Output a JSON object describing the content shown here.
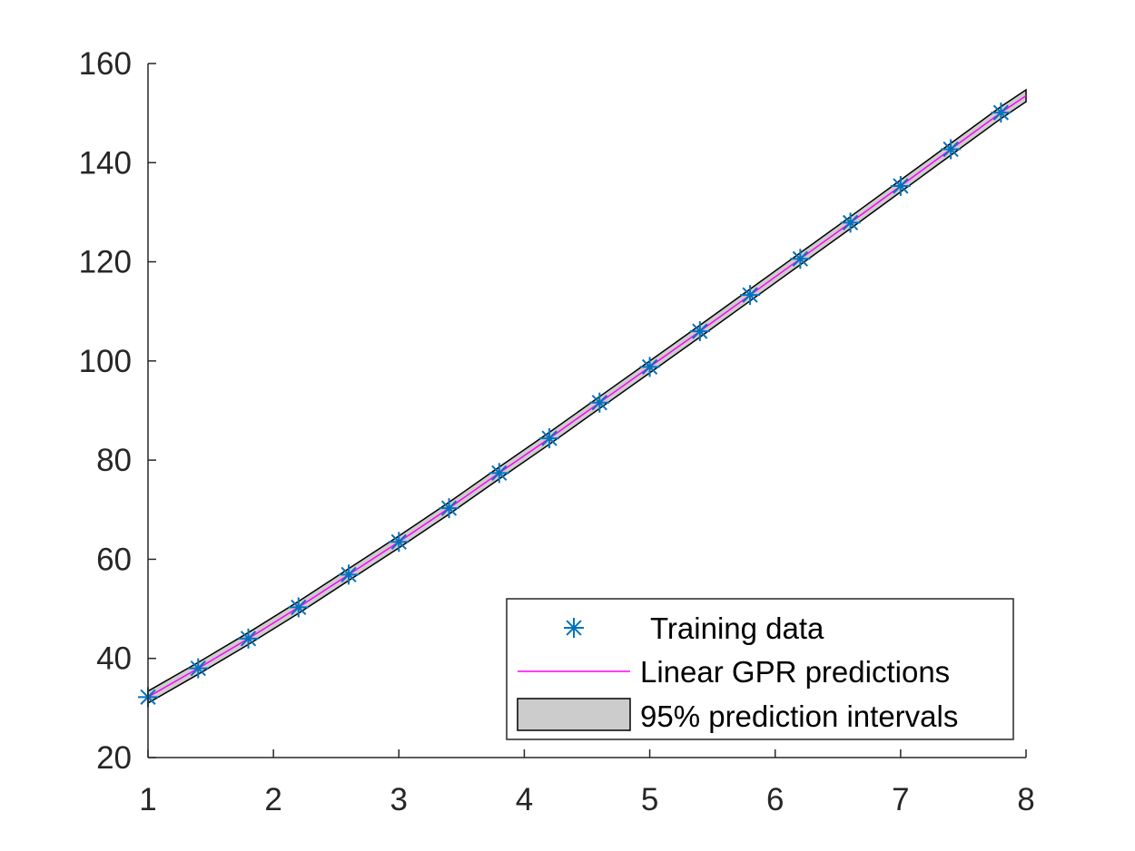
{
  "chart_data": {
    "type": "line",
    "title": "",
    "xlabel": "",
    "ylabel": "",
    "xlim": [
      1,
      8
    ],
    "ylim": [
      20,
      160
    ],
    "x_ticks": [
      1,
      2,
      3,
      4,
      5,
      6,
      7,
      8
    ],
    "y_ticks": [
      20,
      40,
      60,
      80,
      100,
      120,
      140,
      160
    ],
    "x_tick_labels": [
      "1",
      "2",
      "3",
      "4",
      "5",
      "6",
      "7",
      "8"
    ],
    "y_tick_labels": [
      "20",
      "40",
      "60",
      "80",
      "100",
      "120",
      "140",
      "160"
    ],
    "grid": false,
    "legend_position": "bottom-right",
    "series": [
      {
        "name": "Training data",
        "kind": "scatter",
        "marker": "asterisk",
        "color": "#0072bd",
        "x": [
          1.0,
          1.4,
          1.8,
          2.2,
          2.6,
          3.0,
          3.4,
          3.8,
          4.2,
          4.6,
          5.0,
          5.4,
          5.8,
          6.2,
          6.6,
          7.0,
          7.4,
          7.8
        ],
        "y": [
          32.2,
          38.0,
          44.0,
          50.3,
          56.9,
          63.5,
          70.3,
          77.4,
          84.4,
          91.6,
          98.8,
          106.0,
          113.3,
          120.6,
          127.9,
          135.3,
          142.7,
          150.1
        ]
      },
      {
        "name": "Linear GPR predictions",
        "kind": "line",
        "color": "#ff00ff",
        "x": [
          1.0,
          1.4,
          1.8,
          2.2,
          2.6,
          3.0,
          3.4,
          3.8,
          4.2,
          4.6,
          5.0,
          5.4,
          5.8,
          6.2,
          6.6,
          7.0,
          7.4,
          7.8,
          8.0
        ],
        "y": [
          32.2,
          38.0,
          44.0,
          50.3,
          56.9,
          63.5,
          70.3,
          77.4,
          84.4,
          91.6,
          98.8,
          106.0,
          113.3,
          120.6,
          127.9,
          135.3,
          142.7,
          150.1,
          153.5
        ]
      },
      {
        "name": "95% prediction intervals",
        "kind": "band",
        "fill": "#cccccc",
        "edge": "#000000",
        "half_width": 1.2
      }
    ]
  }
}
